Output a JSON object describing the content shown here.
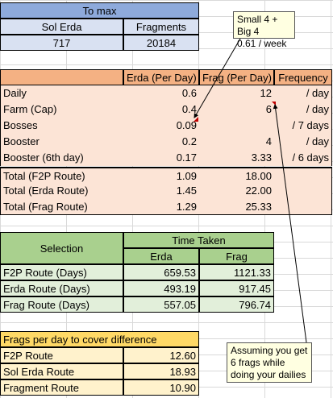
{
  "to_max": {
    "title": "To max",
    "headers": [
      "Sol Erda",
      "Fragments"
    ],
    "values": [
      "717",
      "20184"
    ]
  },
  "rates": {
    "headers": [
      "Erda (Per Day)",
      "Frag (Per Day)",
      "Frequency"
    ],
    "rows": [
      {
        "label": "Daily",
        "erda": "0.6",
        "frag": "12",
        "freq": "/ day"
      },
      {
        "label": "Farm (Cap)",
        "erda": "0.4",
        "frag": "6",
        "freq": "/ day"
      },
      {
        "label": "Bosses",
        "erda": "0.09",
        "frag": "",
        "freq": "/ 7 days"
      },
      {
        "label": "Booster",
        "erda": "0.2",
        "frag": "4",
        "freq": "/ day"
      },
      {
        "label": "Booster (6th day)",
        "erda": "0.17",
        "frag": "3.33",
        "freq": "/ 6 days"
      }
    ],
    "totals": [
      {
        "label": "Total (F2P Route)",
        "erda": "1.09",
        "frag": "18.00"
      },
      {
        "label": "Total (Erda Route)",
        "erda": "1.45",
        "frag": "22.00"
      },
      {
        "label": "Total (Frag Route)",
        "erda": "1.29",
        "frag": "25.33"
      }
    ]
  },
  "time_taken": {
    "selection_label": "Selection",
    "title": "Time Taken",
    "headers": [
      "Erda",
      "Frag"
    ],
    "rows": [
      {
        "label": "F2P Route (Days)",
        "erda": "659.53",
        "frag": "1121.33"
      },
      {
        "label": "Erda Route (Days)",
        "erda": "493.19",
        "frag": "917.45"
      },
      {
        "label": "Frag Route (Days)",
        "erda": "557.05",
        "frag": "796.74"
      }
    ]
  },
  "frags_per_day": {
    "title": "Frags per day to cover difference",
    "rows": [
      {
        "label": "F2P Route",
        "value": "12.60"
      },
      {
        "label": "Sol Erda Route",
        "value": "18.93"
      },
      {
        "label": "Fragment Route",
        "value": "10.90"
      }
    ]
  },
  "comments": {
    "bosses_note": "Small 4 + Big 4\n0.61 / week",
    "farm_note": "Assuming you get\n6 frags while\ndoing your dailies"
  },
  "colors": {
    "header_blue": "#8eaadb",
    "light_blue": "#d9e1f2",
    "orange": "#f4b183",
    "peach": "#fce4d6",
    "green": "#a9d08e",
    "light_green": "#e2efda",
    "gold": "#ffd966",
    "light_gold": "#fff2cc",
    "comment_red": "#c00000"
  }
}
